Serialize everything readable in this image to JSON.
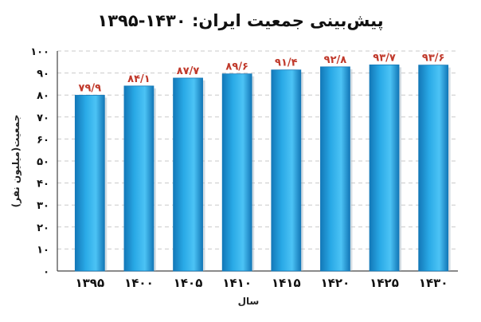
{
  "chart_data": {
    "type": "bar",
    "title": "پیش‌بینی جمعیت ایران: ۱۴۳۰-۱۳۹۵",
    "xlabel": "سال",
    "ylabel": "جمعیت(میلیون نفر)",
    "ylim": [
      0,
      100
    ],
    "yticks": [
      "۰",
      "۱۰",
      "۲۰",
      "۳۰",
      "۴۰",
      "۵۰",
      "۶۰",
      "۷۰",
      "۸۰",
      "۹۰",
      "۱۰۰"
    ],
    "categories": [
      "۱۳۹۵",
      "۱۴۰۰",
      "۱۴۰۵",
      "۱۴۱۰",
      "۱۴۱۵",
      "۱۴۲۰",
      "۱۴۲۵",
      "۱۴۳۰"
    ],
    "values": [
      79.9,
      84.1,
      87.7,
      89.6,
      91.4,
      92.8,
      93.7,
      93.6
    ],
    "value_labels": [
      "۷۹/۹",
      "۸۴/۱",
      "۸۷/۷",
      "۸۹/۶",
      "۹۱/۴",
      "۹۲/۸",
      "۹۳/۷",
      "۹۳/۶"
    ],
    "grid": true,
    "colors": {
      "bar": "#29a9e6",
      "bar_dark": "#1378b8",
      "label": "#c0392b"
    }
  }
}
